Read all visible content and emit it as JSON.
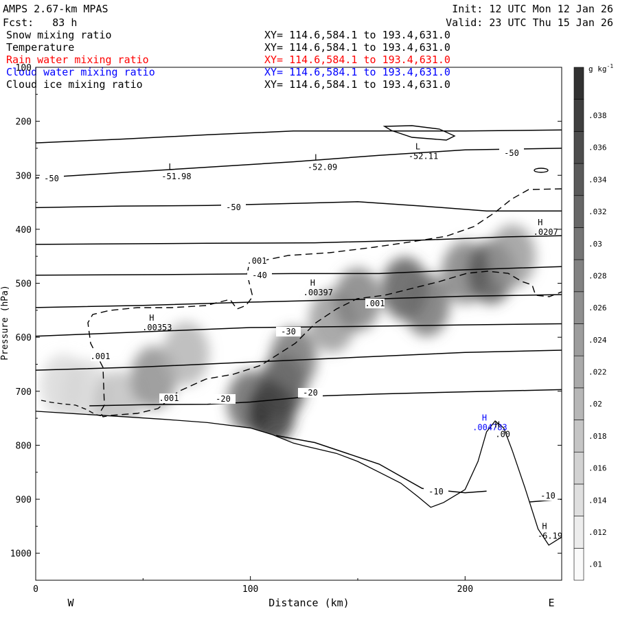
{
  "header": {
    "title": "AMPS 2.67-km MPAS",
    "forecast": "Fcst:   83 h",
    "init": "Init: 12 UTC Mon 12 Jan 26",
    "valid": "Valid: 23 UTC Thu 15 Jan 26"
  },
  "fields": [
    {
      "name": "Snow mixing ratio",
      "xy": "XY= 114.6,584.1 to 193.4,631.0",
      "color": "#000000"
    },
    {
      "name": "Temperature",
      "xy": "XY= 114.6,584.1 to 193.4,631.0",
      "color": "#000000"
    },
    {
      "name": "Rain water mixing ratio",
      "xy": "XY= 114.6,584.1 to 193.4,631.0",
      "color": "#ff0000"
    },
    {
      "name": "Cloud water mixing ratio",
      "xy": "XY= 114.6,584.1 to 193.4,631.0",
      "color": "#0000ff"
    },
    {
      "name": "Cloud ice mixing ratio",
      "xy": "XY= 114.6,584.1 to 193.4,631.0",
      "color": "#000000"
    }
  ],
  "chart_data": {
    "type": "cross-section",
    "xlabel": "Distance (km)",
    "ylabel": "Pressure (hPa)",
    "xlim": [
      0,
      245
    ],
    "ylim": [
      1050,
      100
    ],
    "x_ticks": [
      0,
      100,
      200
    ],
    "y_ticks": [
      100,
      200,
      300,
      400,
      500,
      600,
      700,
      800,
      900,
      1000
    ],
    "left_end_label": "W",
    "right_end_label": "E",
    "colorbar": {
      "units": "g kg",
      "units_exp": "-1",
      "levels": [
        ".01",
        ".012",
        ".014",
        ".016",
        ".018",
        ".02",
        ".022",
        ".024",
        ".026",
        ".028",
        ".03",
        ".032",
        ".034",
        ".036",
        ".038"
      ]
    },
    "snow_maxima": [
      {
        "x": 13,
        "p": 690,
        "v": 0.014
      },
      {
        "x": 23,
        "p": 700,
        "v": 0.014
      },
      {
        "x": 38,
        "p": 720,
        "v": 0.018
      },
      {
        "x": 55,
        "p": 675,
        "v": 0.026
      },
      {
        "x": 70,
        "p": 630,
        "v": 0.02
      },
      {
        "x": 100,
        "p": 720,
        "v": 0.032
      },
      {
        "x": 110,
        "p": 740,
        "v": 0.04
      },
      {
        "x": 115,
        "p": 690,
        "v": 0.036
      },
      {
        "x": 120,
        "p": 640,
        "v": 0.03
      },
      {
        "x": 138,
        "p": 570,
        "v": 0.024
      },
      {
        "x": 150,
        "p": 530,
        "v": 0.028
      },
      {
        "x": 172,
        "p": 510,
        "v": 0.034
      },
      {
        "x": 182,
        "p": 540,
        "v": 0.03
      },
      {
        "x": 200,
        "p": 480,
        "v": 0.028
      },
      {
        "x": 212,
        "p": 480,
        "v": 0.034
      },
      {
        "x": 222,
        "p": 450,
        "v": 0.024
      }
    ],
    "terrain": [
      [
        0,
        737
      ],
      [
        20,
        742
      ],
      [
        40,
        747
      ],
      [
        60,
        752
      ],
      [
        80,
        758
      ],
      [
        100,
        768
      ],
      [
        110,
        780
      ],
      [
        120,
        796
      ],
      [
        126,
        802
      ],
      [
        140,
        815
      ],
      [
        150,
        830
      ],
      [
        160,
        850
      ],
      [
        170,
        870
      ],
      [
        178,
        895
      ],
      [
        184,
        915
      ],
      [
        190,
        906
      ],
      [
        200,
        882
      ],
      [
        206,
        830
      ],
      [
        210,
        775
      ],
      [
        214,
        755
      ],
      [
        218,
        768
      ],
      [
        222,
        810
      ],
      [
        228,
        880
      ],
      [
        234,
        955
      ],
      [
        239,
        985
      ],
      [
        245,
        970
      ]
    ],
    "temperature_contours": [
      {
        "label": "-50",
        "pts": [
          [
            0,
            240
          ],
          [
            40,
            233
          ],
          [
            80,
            225
          ],
          [
            120,
            218
          ],
          [
            160,
            218
          ],
          [
            200,
            218
          ],
          [
            245,
            216
          ]
        ]
      },
      {
        "label": "-50",
        "pts": [
          [
            0,
            305
          ],
          [
            40,
            295
          ],
          [
            80,
            285
          ],
          [
            120,
            275
          ],
          [
            160,
            263
          ],
          [
            200,
            253
          ],
          [
            245,
            250
          ]
        ]
      },
      {
        "label": "-50",
        "pts": [
          [
            0,
            360
          ],
          [
            40,
            357
          ],
          [
            80,
            356
          ],
          [
            120,
            352
          ],
          [
            150,
            349
          ],
          [
            180,
            357
          ],
          [
            210,
            366
          ],
          [
            245,
            366
          ]
        ]
      },
      {
        "label": "",
        "pts": [
          [
            0,
            428
          ],
          [
            80,
            426
          ],
          [
            130,
            425
          ],
          [
            180,
            420
          ],
          [
            220,
            414
          ],
          [
            245,
            412
          ]
        ]
      },
      {
        "label": "-40",
        "pts": [
          [
            0,
            485
          ],
          [
            60,
            484
          ],
          [
            120,
            482
          ],
          [
            160,
            482
          ],
          [
            200,
            475
          ],
          [
            245,
            469
          ]
        ]
      },
      {
        "label": "",
        "pts": [
          [
            0,
            545
          ],
          [
            50,
            541
          ],
          [
            100,
            535
          ],
          [
            150,
            530
          ],
          [
            200,
            524
          ],
          [
            245,
            521
          ]
        ]
      },
      {
        "label": "-30",
        "pts": [
          [
            0,
            598
          ],
          [
            50,
            590
          ],
          [
            100,
            582
          ],
          [
            150,
            580
          ],
          [
            200,
            577
          ],
          [
            245,
            575
          ]
        ]
      },
      {
        "label": "",
        "pts": [
          [
            0,
            661
          ],
          [
            50,
            655
          ],
          [
            100,
            646
          ],
          [
            150,
            637
          ],
          [
            200,
            628
          ],
          [
            245,
            624
          ]
        ]
      },
      {
        "label": "-20",
        "pts": [
          [
            25,
            727
          ],
          [
            50,
            725
          ],
          [
            80,
            724
          ],
          [
            100,
            720
          ],
          [
            130,
            709
          ],
          [
            160,
            705
          ],
          [
            190,
            702
          ],
          [
            245,
            697
          ]
        ]
      },
      {
        "label": "-10",
        "pts": [
          [
            112,
            782
          ],
          [
            130,
            795
          ],
          [
            160,
            835
          ],
          [
            180,
            880
          ],
          [
            200,
            888
          ],
          [
            210,
            885
          ]
        ]
      },
      {
        "label": "-10",
        "pts": [
          [
            230,
            905
          ],
          [
            245,
            900
          ]
        ]
      }
    ],
    "ice_contour_label": ".001",
    "annotations": [
      {
        "kind": "L",
        "value": "-51.98",
        "x": 63,
        "p": 302,
        "color": "#000000"
      },
      {
        "kind": "L",
        "value": "-52.09",
        "x": 131,
        "p": 285,
        "color": "#000000"
      },
      {
        "kind": "L",
        "value": "-52.11",
        "x": 178,
        "p": 265,
        "color": "#000000"
      },
      {
        "kind": "H",
        "value": ".0207",
        "x": 235,
        "p": 405,
        "color": "#000000"
      },
      {
        "kind": "H",
        "value": ".00397",
        "x": 129,
        "p": 517,
        "color": "#000000"
      },
      {
        "kind": "H",
        "value": ".00353",
        "x": 54,
        "p": 582,
        "color": "#000000"
      },
      {
        "kind": "H",
        "value": ".004783",
        "x": 209,
        "p": 767,
        "color": "#0000ff"
      },
      {
        "kind": "H",
        "value": ".00",
        "x": 215,
        "p": 780,
        "color": "#000000"
      },
      {
        "kind": "H",
        "value": "-6.19",
        "x": 237,
        "p": 968,
        "color": "#000000"
      }
    ]
  }
}
